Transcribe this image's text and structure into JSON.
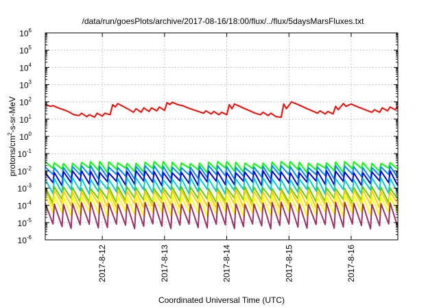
{
  "chart_data": {
    "type": "line",
    "title": "/data/run/goesPlots/archive/2017-08-16/18:00/flux/../flux/5daysMarsFluxes.txt",
    "xlabel": "Coordinated Universal Time (UTC)",
    "ylabel": {
      "prefix": "protons/cm",
      "superscript": "2",
      "suffix": "-s-sr-MeV"
    },
    "xlim": [
      "2017-08-11T02:00",
      "2017-08-16T18:00"
    ],
    "x_ticks": [
      {
        "date": "2017-08-12T00:00",
        "label": "2017-8-12"
      },
      {
        "date": "2017-08-13T00:00",
        "label": "2017-8-13"
      },
      {
        "date": "2017-08-14T00:00",
        "label": "2017-8-14"
      },
      {
        "date": "2017-08-15T00:00",
        "label": "2017-8-15"
      },
      {
        "date": "2017-08-16T00:00",
        "label": "2017-8-16"
      }
    ],
    "y_scale": "log",
    "ylim": [
      1e-06,
      1000000.0
    ],
    "y_ticks": [
      {
        "value": 1e-06,
        "base": "10",
        "exp": "-6"
      },
      {
        "value": 1e-05,
        "base": "10",
        "exp": "-5"
      },
      {
        "value": 0.0001,
        "base": "10",
        "exp": "-4"
      },
      {
        "value": 0.001,
        "base": "10",
        "exp": "-3"
      },
      {
        "value": 0.01,
        "base": "10",
        "exp": "-2"
      },
      {
        "value": 0.1,
        "base": "10",
        "exp": "-1"
      },
      {
        "value": 1.0,
        "base": "10",
        "exp": "0"
      },
      {
        "value": 10.0,
        "base": "10",
        "exp": "1"
      },
      {
        "value": 100.0,
        "base": "10",
        "exp": "2"
      },
      {
        "value": 1000.0,
        "base": "10",
        "exp": "3"
      },
      {
        "value": 10000.0,
        "base": "10",
        "exp": "4"
      },
      {
        "value": 100000.0,
        "base": "10",
        "exp": "5"
      },
      {
        "value": 1000000.0,
        "base": "10",
        "exp": "6"
      }
    ],
    "grid": true,
    "legend": "none",
    "series": [
      {
        "color": "#ff0000",
        "points": [
          [
            "2017-08-11T02:00",
            70
          ],
          [
            "2017-08-11T04:00",
            55
          ],
          [
            "2017-08-11T05:00",
            60
          ],
          [
            "2017-08-11T07:00",
            45
          ],
          [
            "2017-08-11T09:00",
            35
          ],
          [
            "2017-08-11T11:00",
            27
          ],
          [
            "2017-08-11T13:00",
            18
          ],
          [
            "2017-08-11T15:00",
            16
          ],
          [
            "2017-08-11T16:00",
            22
          ],
          [
            "2017-08-11T18:00",
            14
          ],
          [
            "2017-08-11T19:00",
            18
          ],
          [
            "2017-08-11T21:00",
            13
          ],
          [
            "2017-08-11T22:00",
            22
          ],
          [
            "2017-08-12T00:00",
            15
          ],
          [
            "2017-08-12T01:00",
            22
          ],
          [
            "2017-08-12T03:00",
            18
          ],
          [
            "2017-08-12T04:00",
            70
          ],
          [
            "2017-08-12T05:00",
            50
          ],
          [
            "2017-08-12T06:00",
            80
          ],
          [
            "2017-08-12T08:00",
            55
          ],
          [
            "2017-08-12T10:00",
            38
          ],
          [
            "2017-08-12T12:00",
            25
          ],
          [
            "2017-08-12T13:00",
            40
          ],
          [
            "2017-08-12T15:00",
            25
          ],
          [
            "2017-08-12T16:00",
            45
          ],
          [
            "2017-08-12T18:00",
            28
          ],
          [
            "2017-08-12T19:00",
            45
          ],
          [
            "2017-08-12T21:00",
            30
          ],
          [
            "2017-08-12T22:00",
            50
          ],
          [
            "2017-08-13T00:00",
            32
          ],
          [
            "2017-08-13T01:00",
            90
          ],
          [
            "2017-08-13T02:00",
            70
          ],
          [
            "2017-08-13T03:00",
            95
          ],
          [
            "2017-08-13T05:00",
            70
          ],
          [
            "2017-08-13T07:00",
            60
          ],
          [
            "2017-08-13T09:00",
            45
          ],
          [
            "2017-08-13T11:00",
            35
          ],
          [
            "2017-08-13T13:00",
            28
          ],
          [
            "2017-08-13T15:00",
            22
          ],
          [
            "2017-08-13T16:00",
            30
          ],
          [
            "2017-08-13T18:00",
            20
          ],
          [
            "2017-08-13T19:00",
            28
          ],
          [
            "2017-08-13T21:00",
            18
          ],
          [
            "2017-08-13T22:00",
            25
          ],
          [
            "2017-08-14T00:00",
            18
          ],
          [
            "2017-08-14T01:00",
            70
          ],
          [
            "2017-08-14T02:00",
            40
          ],
          [
            "2017-08-14T03:00",
            75
          ],
          [
            "2017-08-14T05:00",
            55
          ],
          [
            "2017-08-14T07:00",
            40
          ],
          [
            "2017-08-14T09:00",
            30
          ],
          [
            "2017-08-14T11:00",
            22
          ],
          [
            "2017-08-14T13:00",
            18
          ],
          [
            "2017-08-14T14:00",
            25
          ],
          [
            "2017-08-14T16:00",
            16
          ],
          [
            "2017-08-14T17:00",
            22
          ],
          [
            "2017-08-14T19:00",
            14
          ],
          [
            "2017-08-14T21:00",
            13
          ],
          [
            "2017-08-14T22:00",
            75
          ],
          [
            "2017-08-14T23:00",
            40
          ],
          [
            "2017-08-15T01:00",
            100
          ],
          [
            "2017-08-15T03:00",
            75
          ],
          [
            "2017-08-15T05:00",
            55
          ],
          [
            "2017-08-15T07:00",
            40
          ],
          [
            "2017-08-15T09:00",
            30
          ],
          [
            "2017-08-15T11:00",
            22
          ],
          [
            "2017-08-15T12:00",
            30
          ],
          [
            "2017-08-15T14:00",
            20
          ],
          [
            "2017-08-15T15:00",
            28
          ],
          [
            "2017-08-15T17:00",
            20
          ],
          [
            "2017-08-15T18:00",
            55
          ],
          [
            "2017-08-15T19:00",
            35
          ],
          [
            "2017-08-15T21:00",
            80
          ],
          [
            "2017-08-15T22:00",
            55
          ],
          [
            "2017-08-16T00:00",
            75
          ],
          [
            "2017-08-16T02:00",
            55
          ],
          [
            "2017-08-16T04:00",
            42
          ],
          [
            "2017-08-16T06:00",
            32
          ],
          [
            "2017-08-16T08:00",
            25
          ],
          [
            "2017-08-16T09:00",
            35
          ],
          [
            "2017-08-16T11:00",
            25
          ],
          [
            "2017-08-16T12:00",
            45
          ],
          [
            "2017-08-16T14:00",
            30
          ],
          [
            "2017-08-16T15:00",
            50
          ],
          [
            "2017-08-16T17:00",
            35
          ],
          [
            "2017-08-16T18:00",
            55
          ]
        ]
      },
      {
        "color": "#00ff00",
        "cycle_high": 0.035,
        "cycle_low": 0.014
      },
      {
        "color": "#0088ff",
        "cycle_high": 0.02,
        "cycle_low": 0.006
      },
      {
        "color": "#0000cc",
        "cycle_high": 0.01,
        "cycle_low": 0.0025
      },
      {
        "color": "#00cccc",
        "cycle_high": 0.004,
        "cycle_low": 0.0008
      },
      {
        "color": "#66cc00",
        "cycle_high": 0.0012,
        "cycle_low": 0.00025
      },
      {
        "color": "#ffcc00",
        "cycle_high": 0.0008,
        "cycle_low": 0.00012
      },
      {
        "color": "#ffff00",
        "cycle_high": 0.0004,
        "cycle_low": 4e-05
      },
      {
        "color": "#993366",
        "cycle_high": 0.00015,
        "cycle_low": 8e-06
      }
    ],
    "cycle_hours": 3.5
  }
}
